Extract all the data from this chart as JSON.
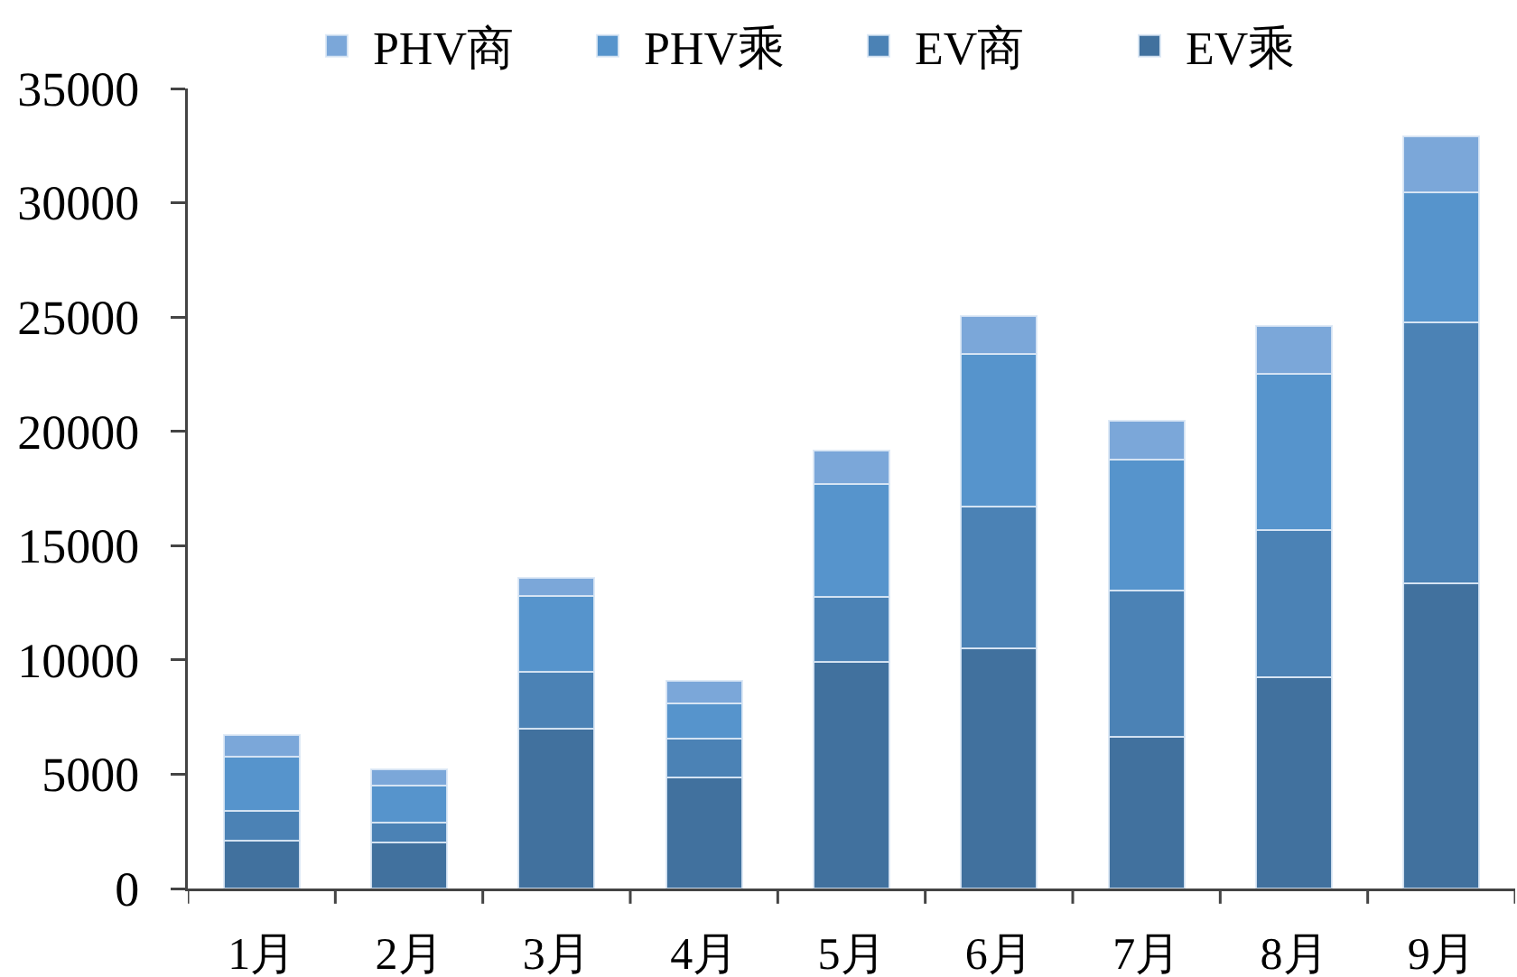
{
  "chart_data": {
    "type": "bar",
    "stacked": true,
    "legend": "top",
    "categories": [
      "1月",
      "2月",
      "3月",
      "4月",
      "5月",
      "6月",
      "7月",
      "8月",
      "9月"
    ],
    "series": [
      {
        "name": "EV乘",
        "color": "#41719e",
        "values": [
          2100,
          2000,
          7000,
          4850,
          9900,
          10500,
          6650,
          9250,
          13350
        ]
      },
      {
        "name": "EV商",
        "color": "#4b82b5",
        "values": [
          1300,
          900,
          2500,
          1700,
          2850,
          6200,
          6400,
          6450,
          11400
        ]
      },
      {
        "name": "PHV乘",
        "color": "#5694cc",
        "values": [
          2350,
          1600,
          3300,
          1550,
          4950,
          6700,
          5700,
          6800,
          5700
        ]
      },
      {
        "name": "PHV商",
        "color": "#7ba7d9",
        "values": [
          950,
          700,
          800,
          1000,
          1450,
          1650,
          1700,
          2100,
          2450
        ]
      }
    ],
    "ylim": [
      0,
      35000
    ],
    "yticks": [
      0,
      5000,
      10000,
      15000,
      20000,
      25000,
      30000,
      35000
    ]
  }
}
